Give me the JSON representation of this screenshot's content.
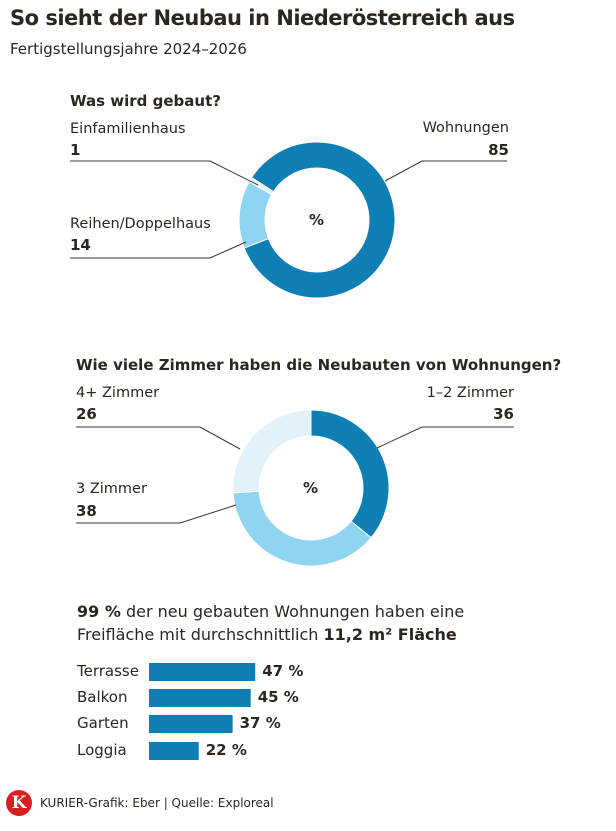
{
  "title": "So sieht der Neubau in Niederösterreich aus",
  "subtitle": "Fertigstellungsjahre 2024–2026",
  "chart_data": [
    {
      "type": "pie",
      "title": "Was wird gebaut?",
      "center_label": "%",
      "categories": [
        "Wohnungen",
        "Reihen/Doppelhaus",
        "Einfamilienhaus"
      ],
      "values": [
        85,
        14,
        1
      ],
      "colors": [
        "#0e7fb5",
        "#8fd4f0",
        "#e2f1fa"
      ]
    },
    {
      "type": "pie",
      "title": "Wie viele Zimmer haben die Neubauten von Wohnungen?",
      "center_label": "%",
      "categories": [
        "1–2 Zimmer",
        "3 Zimmer",
        "4+ Zimmer"
      ],
      "values": [
        36,
        38,
        26
      ],
      "colors": [
        "#0e7fb5",
        "#8fd4f0",
        "#e2f1fa"
      ]
    },
    {
      "type": "bar",
      "orientation": "horizontal",
      "categories": [
        "Terrasse",
        "Balkon",
        "Garten",
        "Loggia"
      ],
      "values": [
        47,
        45,
        37,
        22
      ],
      "value_labels": [
        "47 %",
        "45 %",
        "37 %",
        "22 %"
      ],
      "color": "#0e7fb5"
    }
  ],
  "statement": {
    "bold1": "99 %",
    "text1": " der neu gebauten Wohnungen haben eine",
    "text2": "Freifläche mit durchschnittlich ",
    "bold2": "11,2 m² Fläche"
  },
  "footer": {
    "logo": "K",
    "credit": "KURIER-Grafik: Eber | Quelle: Exploreal"
  }
}
